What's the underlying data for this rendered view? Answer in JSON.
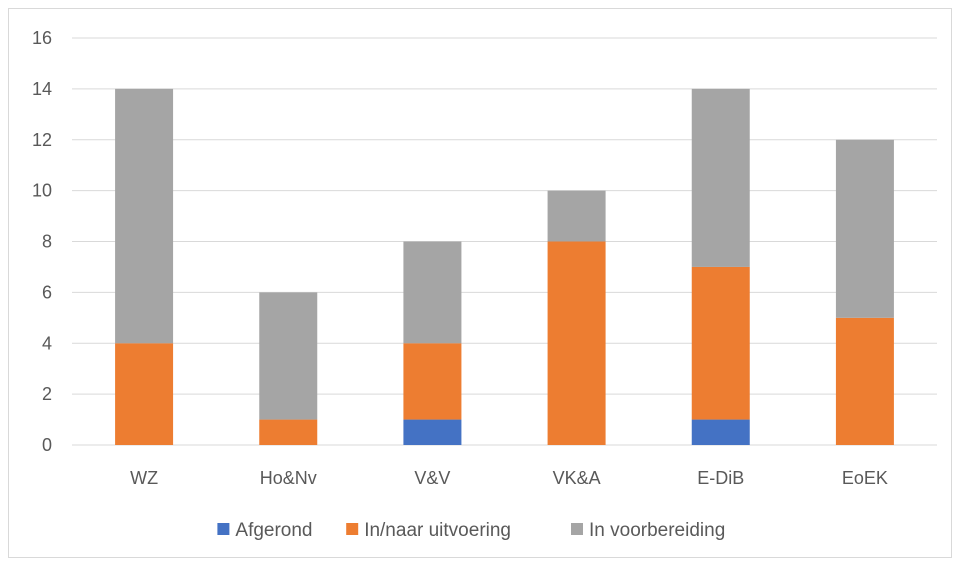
{
  "chart_data": {
    "type": "bar",
    "stacked": true,
    "categories": [
      "WZ",
      "Ho&Nv",
      "V&V",
      "VK&A",
      "E-DiB",
      "EoEK"
    ],
    "series": [
      {
        "name": "Afgerond",
        "color": "#4472c4",
        "values": [
          0,
          0,
          1,
          0,
          1,
          0
        ]
      },
      {
        "name": "In/naar uitvoering",
        "color": "#ed7d31",
        "values": [
          4,
          1,
          3,
          8,
          6,
          5
        ]
      },
      {
        "name": "In voorbereiding",
        "color": "#a5a5a5",
        "values": [
          10,
          5,
          4,
          2,
          7,
          7
        ]
      }
    ],
    "ylim": [
      0,
      16
    ],
    "yticks": [
      "0",
      "2",
      "4",
      "6",
      "8",
      "10",
      "12",
      "14",
      "16"
    ],
    "grid": true,
    "legend_position": "bottom"
  }
}
